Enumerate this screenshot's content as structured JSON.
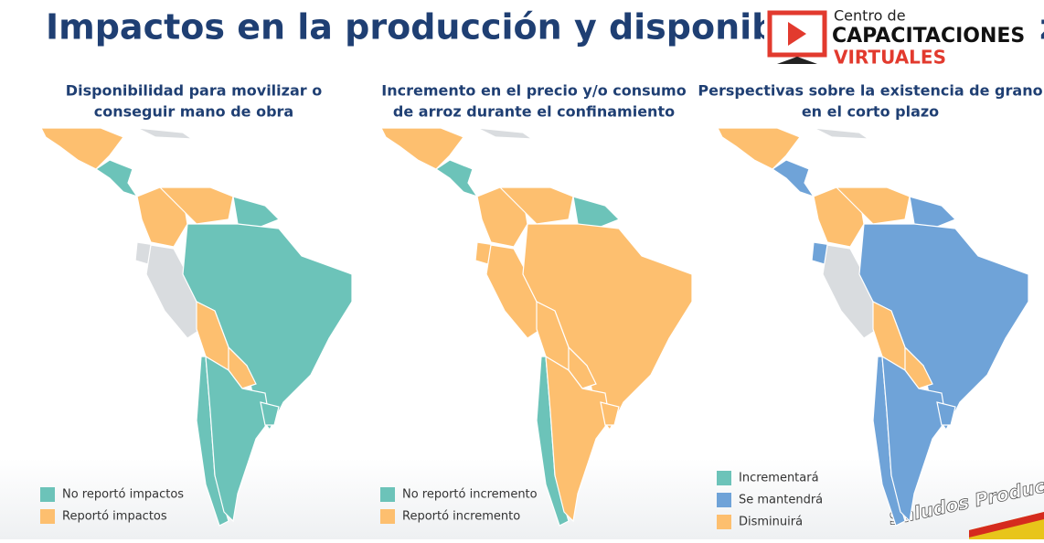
{
  "header": {
    "title": "Impactos en la producción y disponibilidad de arroz"
  },
  "logo": {
    "line1": "Centro de",
    "line2": "CAPACITACIONES",
    "line3": "VIRTUALES"
  },
  "watermark": "Saludos Productivos",
  "panels": [
    {
      "title": [
        "Disponibilidad para movilizar o",
        "conseguir mano de obra"
      ],
      "legend": [
        {
          "label": "No reportó impactos",
          "color": "#6cc3b9"
        },
        {
          "label": "Reportó impactos",
          "color": "#fdbf6f"
        }
      ]
    },
    {
      "title": [
        "Incremento en el precio y/o consumo",
        "de arroz durante el confinamiento"
      ],
      "legend": [
        {
          "label": "No reportó incremento",
          "color": "#6cc3b9"
        },
        {
          "label": "Reportó incremento",
          "color": "#fdbf6f"
        }
      ]
    },
    {
      "title": [
        "Perspectivas sobre la existencia de grano",
        "en el corto plazo"
      ],
      "legend": [
        {
          "label": "Incrementará",
          "color": "#6cc3b9"
        },
        {
          "label": "Se mantendrá",
          "color": "#6fa3d8"
        },
        {
          "label": "Disminuirá",
          "color": "#fdbf6f"
        }
      ]
    }
  ]
}
